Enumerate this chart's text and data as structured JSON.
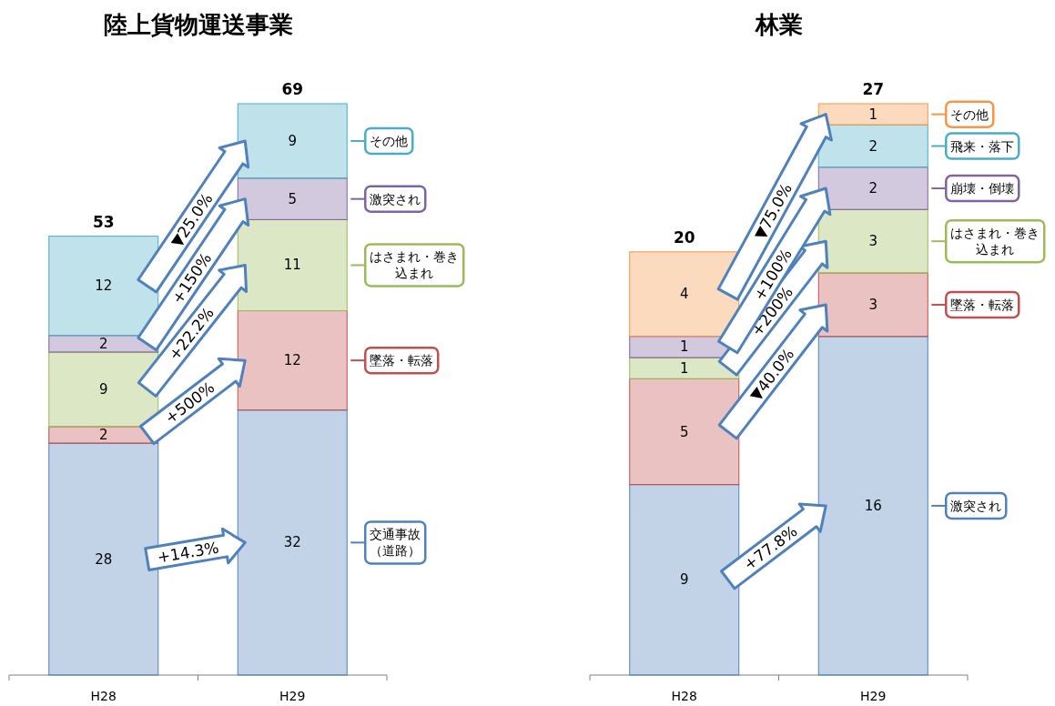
{
  "chart_data": [
    {
      "type": "bar",
      "stacked": true,
      "title": "陸上貨物運送事業",
      "legend": "right",
      "categories": [
        "H28",
        "H29"
      ],
      "data_labels": true,
      "totals": [
        "53",
        "69"
      ],
      "series": [
        {
          "name": "交通事故（道路）",
          "color": "#4f81bd",
          "values": [
            28,
            32
          ]
        },
        {
          "name": "墜落・転落",
          "color": "#c0504d",
          "values": [
            2,
            12
          ]
        },
        {
          "name": "はさまれ・巻き込まれ",
          "color": "#9bbb59",
          "values": [
            9,
            11
          ]
        },
        {
          "name": "激突され",
          "color": "#8064a2",
          "values": [
            2,
            5
          ]
        },
        {
          "name": "その他",
          "color": "#4bacc6",
          "values": [
            12,
            9
          ]
        }
      ],
      "annotations": [
        "+14.3%",
        "+500%",
        "+22.2%",
        "+150%",
        "▼25.0%"
      ]
    },
    {
      "type": "bar",
      "stacked": true,
      "title": "林業",
      "legend": "right",
      "categories": [
        "H28",
        "H29"
      ],
      "data_labels": true,
      "totals": [
        "20",
        "27"
      ],
      "series": [
        {
          "name": "激突され",
          "color": "#4f81bd",
          "values": [
            9,
            16
          ]
        },
        {
          "name": "墜落・転落",
          "color": "#c0504d",
          "values": [
            5,
            3
          ]
        },
        {
          "name": "はさまれ・巻き込まれ",
          "color": "#9bbb59",
          "values": [
            1,
            3
          ]
        },
        {
          "name": "崩壊・倒壊",
          "color": "#8064a2",
          "values": [
            1,
            2
          ]
        },
        {
          "name": "飛来・落下",
          "color": "#4bacc6",
          "values": [
            null,
            2
          ]
        },
        {
          "name": "その他",
          "color": "#f79646",
          "values": [
            4,
            1
          ]
        }
      ],
      "annotations": [
        "+77.8%",
        "▼40.0%",
        "+200%",
        "+100%",
        "▼75.0%"
      ]
    }
  ]
}
